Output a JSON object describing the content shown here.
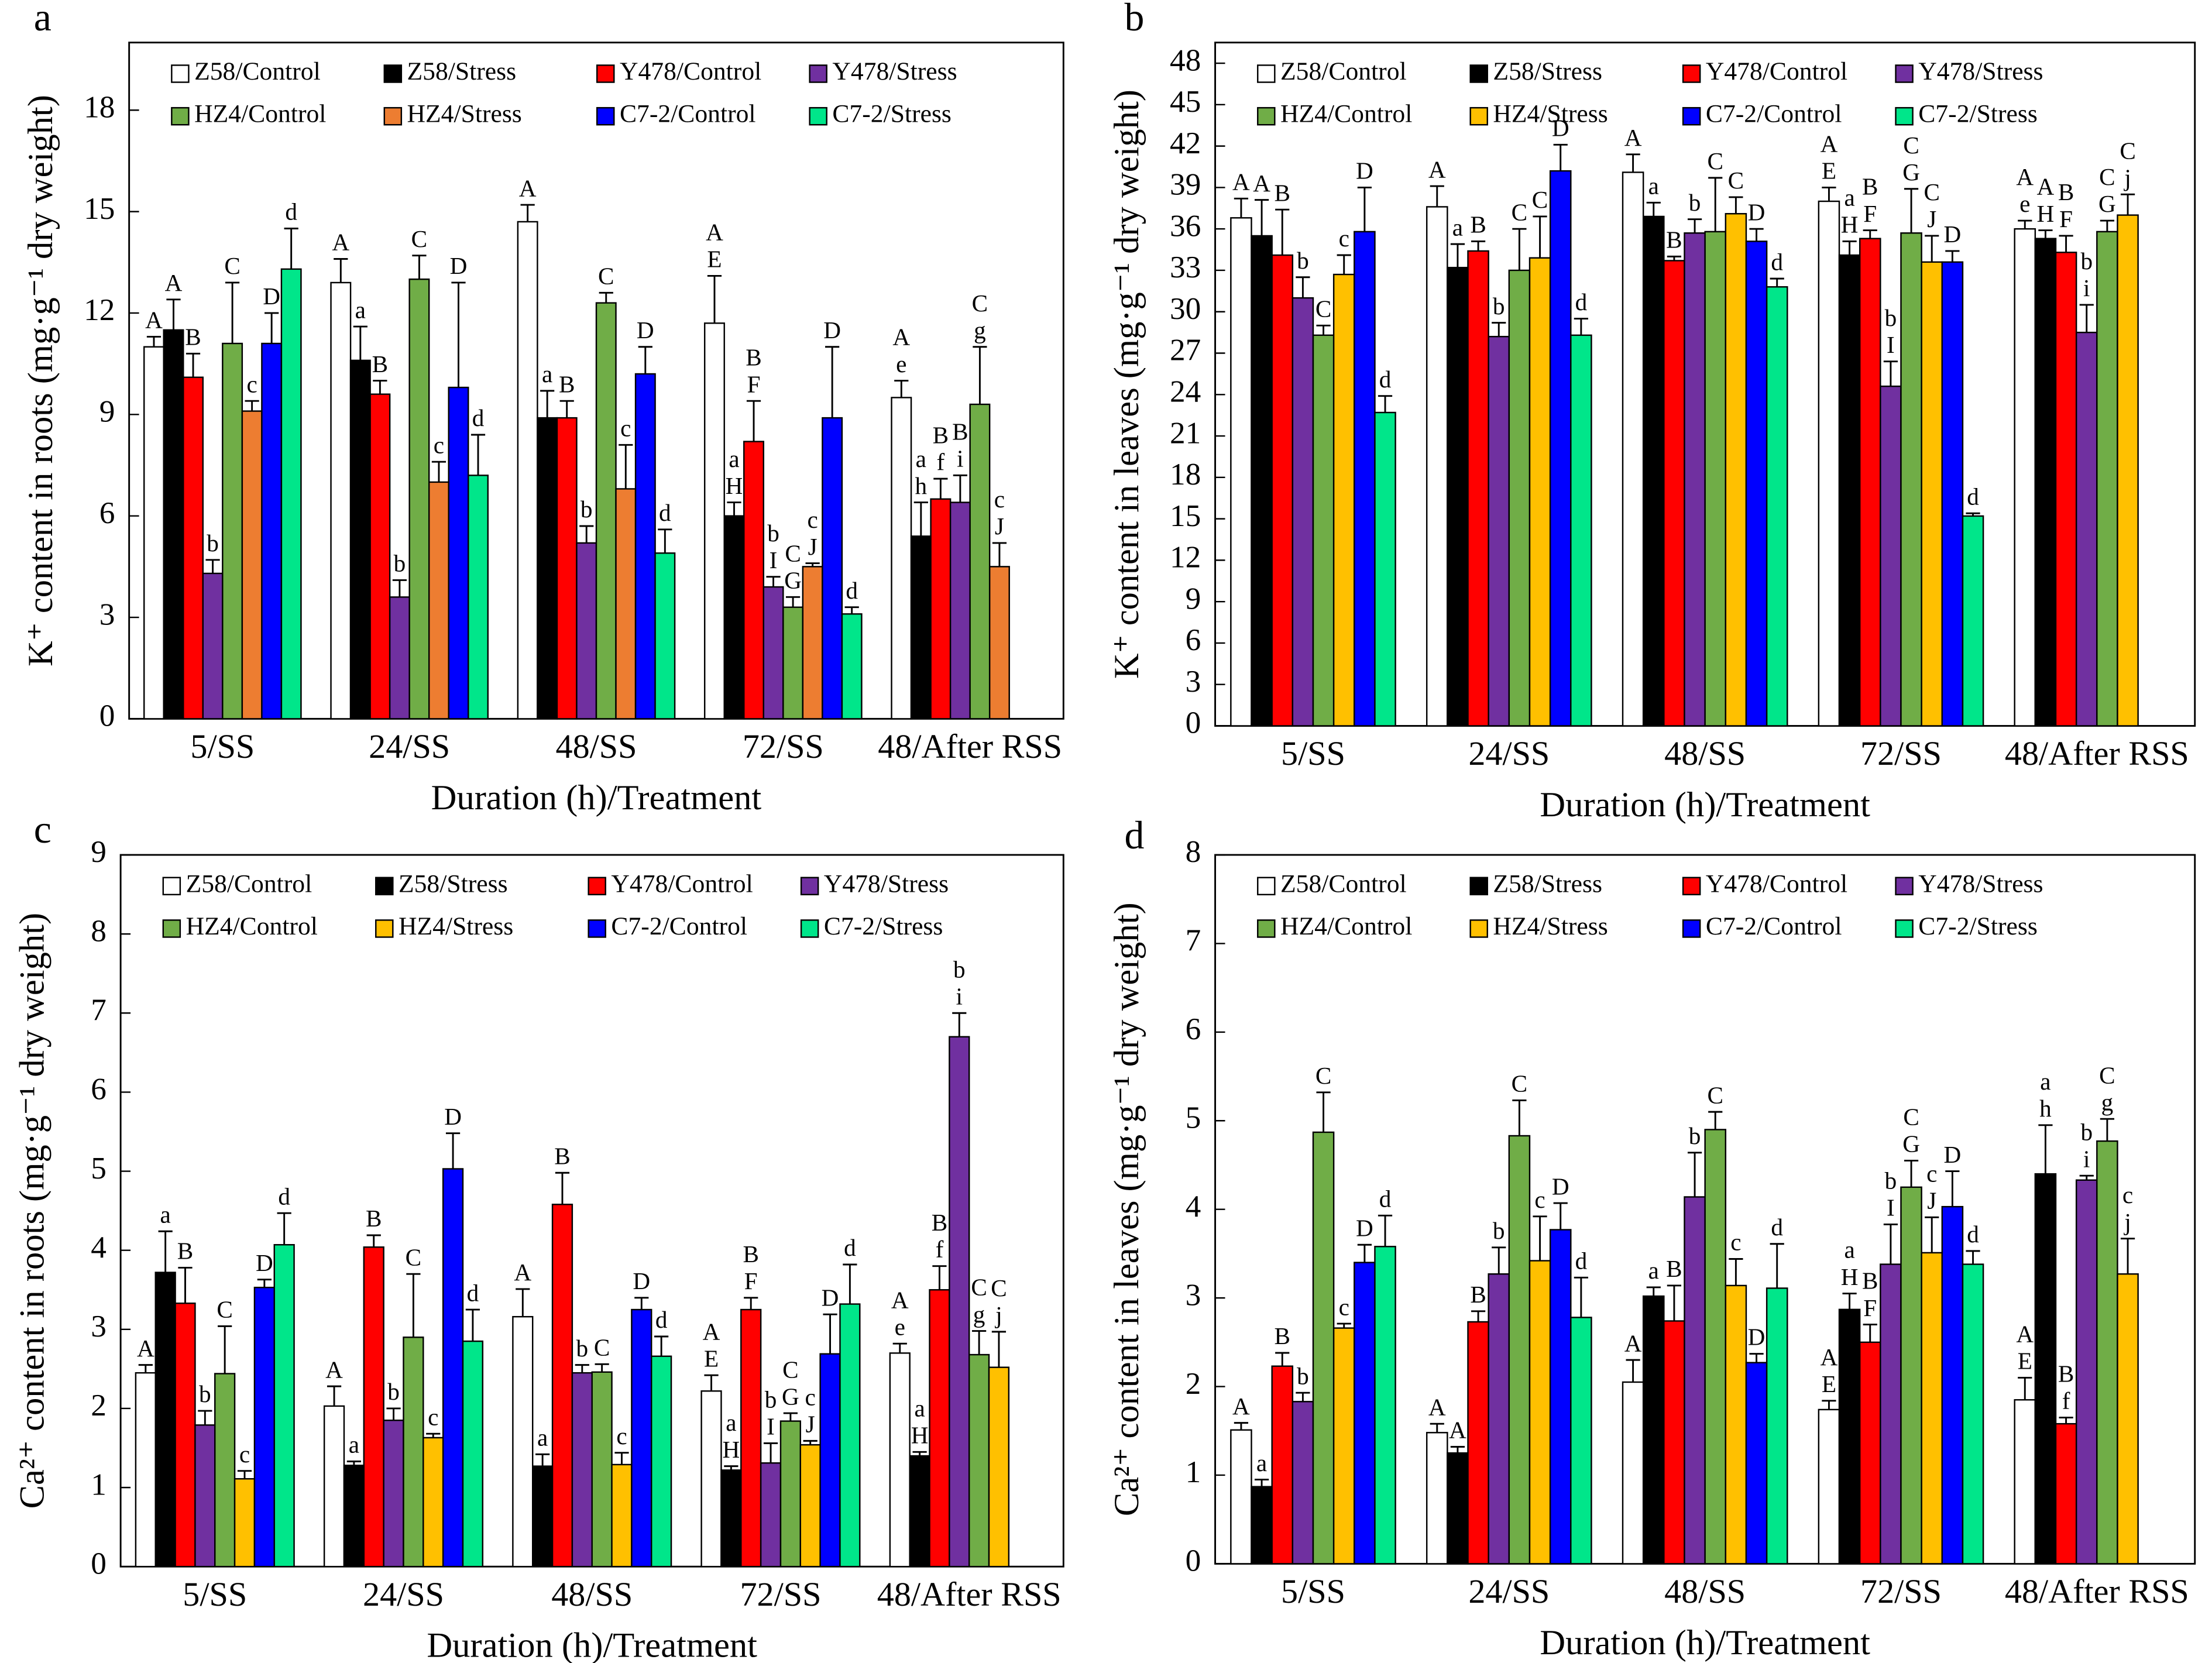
{
  "chart_data": [
    {
      "type": "bar",
      "panel": "a",
      "ylabel": "K⁺ content in roots (mg·g⁻¹ dry weight)",
      "xlabel": "Duration (h)/Treatment",
      "categories": [
        "5/SS",
        "24/SS",
        "48/SS",
        "72/SS",
        "48/After RSS"
      ],
      "ylim": [
        0,
        20
      ],
      "yticks": [
        0,
        3,
        6,
        9,
        12,
        15,
        18
      ],
      "series": [
        {
          "name": "Z58/Control",
          "color": "#ffffff",
          "values": [
            11.0,
            12.9,
            14.7,
            11.7,
            9.5
          ],
          "errors": [
            0.3,
            0.7,
            0.5,
            1.4,
            0.5
          ],
          "letters": [
            "A",
            "A",
            "A",
            [
              "A",
              "E"
            ],
            [
              "A",
              "e"
            ]
          ]
        },
        {
          "name": "Z58/Stress",
          "color": "#000000",
          "values": [
            11.5,
            10.6,
            8.9,
            6.0,
            5.4
          ],
          "errors": [
            0.9,
            1.0,
            0.8,
            0.4,
            1.0
          ],
          "letters": [
            "A",
            "a",
            "a",
            [
              "a",
              "H"
            ],
            [
              "a",
              "h"
            ]
          ]
        },
        {
          "name": "Y478/Control",
          "color": "#ff0000",
          "values": [
            10.1,
            9.6,
            8.9,
            8.2,
            6.5
          ],
          "errors": [
            0.7,
            0.4,
            0.5,
            1.2,
            0.6
          ],
          "letters": [
            "B",
            "B",
            "B",
            [
              "B",
              "F"
            ],
            [
              "B",
              "f"
            ]
          ]
        },
        {
          "name": "Y478/Stress",
          "color": "#7030a0",
          "values": [
            4.3,
            3.6,
            5.2,
            3.9,
            6.4
          ],
          "errors": [
            0.4,
            0.5,
            0.5,
            0.3,
            0.8
          ],
          "letters": [
            "b",
            "b",
            "b",
            [
              "b",
              "I"
            ],
            [
              "B",
              "i"
            ]
          ]
        },
        {
          "name": "HZ4/Control",
          "color": "#70ad47",
          "values": [
            11.1,
            13.0,
            12.3,
            3.3,
            9.3
          ],
          "errors": [
            1.8,
            0.7,
            0.3,
            0.3,
            1.7
          ],
          "letters": [
            "C",
            "C",
            "C",
            [
              "C",
              "G"
            ],
            [
              "C",
              "g"
            ]
          ]
        },
        {
          "name": "HZ4/Stress",
          "color": "#ed7d31",
          "values": [
            9.1,
            7.0,
            6.8,
            4.5,
            4.5
          ],
          "errors": [
            0.3,
            0.6,
            1.3,
            0.1,
            0.7
          ],
          "letters": [
            "c",
            "c",
            "c",
            [
              "c",
              "J"
            ],
            [
              "c",
              "J"
            ]
          ]
        },
        {
          "name": "C7-2/Control",
          "color": "#0000ff",
          "values": [
            11.1,
            9.8,
            10.2,
            8.9,
            null
          ],
          "errors": [
            0.9,
            3.1,
            0.8,
            2.1,
            null
          ],
          "letters": [
            "D",
            "D",
            "D",
            "D",
            null
          ]
        },
        {
          "name": "C7-2/Stress",
          "color": "#00e68a",
          "values": [
            13.3,
            7.2,
            4.9,
            3.1,
            null
          ],
          "errors": [
            1.2,
            1.2,
            0.7,
            0.2,
            null
          ],
          "letters": [
            "d",
            "d",
            "d",
            "d",
            null
          ]
        }
      ]
    },
    {
      "type": "bar",
      "panel": "b",
      "ylabel": "K⁺ content in leaves (mg·g⁻¹ dry weight)",
      "xlabel": "Duration (h)/Treatment",
      "categories": [
        "5/SS",
        "24/SS",
        "48/SS",
        "72/SS",
        "48/After RSS"
      ],
      "ylim": [
        0,
        49.5
      ],
      "yticks": [
        0,
        3,
        6,
        9,
        12,
        15,
        18,
        21,
        24,
        27,
        30,
        33,
        36,
        39,
        42,
        45,
        48
      ],
      "series": [
        {
          "name": "Z58/Control",
          "color": "#ffffff",
          "values": [
            36.8,
            37.6,
            40.1,
            38.0,
            36.0
          ],
          "errors": [
            1.4,
            1.5,
            1.3,
            1.0,
            0.6
          ],
          "letters": [
            "A",
            "A",
            "A",
            [
              "A",
              "E"
            ],
            [
              "A",
              "e"
            ]
          ]
        },
        {
          "name": "Z58/Stress",
          "color": "#000000",
          "values": [
            35.5,
            33.2,
            36.9,
            34.1,
            35.3
          ],
          "errors": [
            2.6,
            1.7,
            1.0,
            1.0,
            0.6
          ],
          "letters": [
            "A",
            "a",
            "a",
            [
              "a",
              "H"
            ],
            [
              "A",
              "H"
            ]
          ]
        },
        {
          "name": "Y478/Control",
          "color": "#ff0000",
          "values": [
            34.1,
            34.4,
            33.7,
            35.3,
            34.3
          ],
          "errors": [
            3.3,
            0.7,
            0.3,
            0.6,
            1.2
          ],
          "letters": [
            "B",
            "B",
            "B",
            [
              "B",
              "F"
            ],
            [
              "B",
              "F"
            ]
          ]
        },
        {
          "name": "Y478/Stress",
          "color": "#7030a0",
          "values": [
            31.0,
            28.2,
            35.7,
            24.6,
            28.5
          ],
          "errors": [
            1.5,
            1.0,
            1.0,
            1.8,
            2.0
          ],
          "letters": [
            "b",
            "b",
            "b",
            [
              "b",
              "I"
            ],
            [
              "b",
              "i"
            ]
          ]
        },
        {
          "name": "HZ4/Control",
          "color": "#70ad47",
          "values": [
            28.3,
            33.0,
            35.8,
            35.7,
            35.8
          ],
          "errors": [
            0.7,
            3.0,
            3.9,
            3.2,
            0.8
          ],
          "letters": [
            "C",
            "C",
            "C",
            [
              "C",
              "G"
            ],
            [
              "C",
              "G"
            ]
          ]
        },
        {
          "name": "HZ4/Stress",
          "color": "#ffc000",
          "values": [
            32.7,
            33.9,
            37.1,
            33.6,
            37.0
          ],
          "errors": [
            1.4,
            3.0,
            1.2,
            1.9,
            1.5
          ],
          "letters": [
            "c",
            "C",
            "C",
            [
              "C",
              "J"
            ],
            [
              "C",
              "j"
            ]
          ]
        },
        {
          "name": "C7-2/Control",
          "color": "#0000ff",
          "values": [
            35.8,
            40.2,
            35.1,
            33.6,
            null
          ],
          "errors": [
            3.2,
            1.9,
            0.9,
            0.8,
            null
          ],
          "letters": [
            "D",
            "D",
            "D",
            "D",
            null
          ]
        },
        {
          "name": "C7-2/Stress",
          "color": "#00e68a",
          "values": [
            22.7,
            28.3,
            31.8,
            15.2,
            null
          ],
          "errors": [
            1.2,
            1.2,
            0.6,
            0.2,
            null
          ],
          "letters": [
            "d",
            "d",
            "d",
            "d",
            null
          ]
        }
      ]
    },
    {
      "type": "bar",
      "panel": "c",
      "ylabel": "Ca²⁺ content in roots (mg·g⁻¹ dry weight)",
      "xlabel": "Duration (h)/Treatment",
      "categories": [
        "5/SS",
        "24/SS",
        "48/SS",
        "72/SS",
        "48/After RSS"
      ],
      "ylim": [
        0,
        9
      ],
      "yticks": [
        0,
        1,
        2,
        3,
        4,
        5,
        6,
        7,
        8,
        9
      ],
      "series": [
        {
          "name": "Z58/Control",
          "color": "#ffffff",
          "values": [
            2.45,
            2.03,
            3.16,
            2.22,
            2.7
          ],
          "errors": [
            0.1,
            0.25,
            0.35,
            0.2,
            0.12
          ],
          "letters": [
            "A",
            "A",
            "A",
            [
              "A",
              "E"
            ],
            [
              "A",
              "e"
            ]
          ]
        },
        {
          "name": "Z58/Stress",
          "color": "#000000",
          "values": [
            3.72,
            1.28,
            1.27,
            1.22,
            1.4
          ],
          "errors": [
            0.52,
            0.05,
            0.15,
            0.05,
            0.05
          ],
          "letters": [
            "a",
            "a",
            "a",
            [
              "a",
              "H"
            ],
            [
              "a",
              "H"
            ]
          ]
        },
        {
          "name": "Y478/Control",
          "color": "#ff0000",
          "values": [
            3.33,
            4.04,
            4.58,
            3.25,
            3.5
          ],
          "errors": [
            0.45,
            0.15,
            0.4,
            0.15,
            0.3
          ],
          "letters": [
            "B",
            "B",
            "B",
            [
              "B",
              "F"
            ],
            [
              "B",
              "f"
            ]
          ]
        },
        {
          "name": "Y478/Stress",
          "color": "#7030a0",
          "values": [
            1.79,
            1.85,
            2.45,
            1.31,
            6.7
          ],
          "errors": [
            0.18,
            0.15,
            0.1,
            0.25,
            0.3
          ],
          "letters": [
            "b",
            "b",
            "b",
            [
              "b",
              "I"
            ],
            [
              "b",
              "i"
            ]
          ]
        },
        {
          "name": "HZ4/Control",
          "color": "#70ad47",
          "values": [
            2.44,
            2.9,
            2.46,
            1.84,
            2.68
          ],
          "errors": [
            0.6,
            0.8,
            0.1,
            0.1,
            0.3
          ],
          "letters": [
            "C",
            "C",
            "C",
            [
              "C",
              "G"
            ],
            [
              "C",
              "g"
            ]
          ]
        },
        {
          "name": "HZ4/Stress",
          "color": "#ffc000",
          "values": [
            1.11,
            1.63,
            1.29,
            1.54,
            2.52
          ],
          "errors": [
            0.1,
            0.05,
            0.15,
            0.05,
            0.45
          ],
          "letters": [
            "c",
            "c",
            "c",
            [
              "c",
              "J"
            ],
            [
              "C",
              "j"
            ]
          ]
        },
        {
          "name": "C7-2/Control",
          "color": "#0000ff",
          "values": [
            3.53,
            5.03,
            3.25,
            2.69,
            null
          ],
          "errors": [
            0.1,
            0.45,
            0.15,
            0.5,
            null
          ],
          "letters": [
            "D",
            "D",
            "D",
            "D",
            null
          ]
        },
        {
          "name": "C7-2/Stress",
          "color": "#00e68a",
          "values": [
            4.07,
            2.85,
            2.66,
            3.32,
            null
          ],
          "errors": [
            0.4,
            0.4,
            0.25,
            0.5,
            null
          ],
          "letters": [
            "d",
            "d",
            "d",
            "d",
            null
          ]
        }
      ]
    },
    {
      "type": "bar",
      "panel": "d",
      "ylabel": "Ca²⁺ content in leaves (mg·g⁻¹ dry weight)",
      "xlabel": "Duration (h)/Treatment",
      "categories": [
        "5/SS",
        "24/SS",
        "48/SS",
        "72/SS",
        "48/After RSS"
      ],
      "ylim": [
        0,
        8
      ],
      "yticks": [
        0,
        1,
        2,
        3,
        4,
        5,
        6,
        7,
        8
      ],
      "series": [
        {
          "name": "Z58/Control",
          "color": "#ffffff",
          "values": [
            1.51,
            1.48,
            2.05,
            1.74,
            1.85
          ],
          "errors": [
            0.08,
            0.1,
            0.25,
            0.1,
            0.25
          ],
          "letters": [
            "A",
            "A",
            "A",
            [
              "A",
              "E"
            ],
            [
              "A",
              "E"
            ]
          ]
        },
        {
          "name": "Z58/Stress",
          "color": "#000000",
          "values": [
            0.87,
            1.25,
            3.02,
            2.87,
            4.4
          ],
          "errors": [
            0.08,
            0.07,
            0.1,
            0.18,
            0.55
          ],
          "letters": [
            "a",
            "A",
            "a",
            [
              "a",
              "H"
            ],
            [
              "a",
              "h"
            ]
          ]
        },
        {
          "name": "Y478/Control",
          "color": "#ff0000",
          "values": [
            2.23,
            2.73,
            2.74,
            2.5,
            1.58
          ],
          "errors": [
            0.15,
            0.12,
            0.4,
            0.2,
            0.07
          ],
          "letters": [
            "B",
            "B",
            "B",
            [
              "B",
              "F"
            ],
            [
              "B",
              "f"
            ]
          ]
        },
        {
          "name": "Y478/Stress",
          "color": "#7030a0",
          "values": [
            1.83,
            3.27,
            4.14,
            3.38,
            4.33
          ],
          "errors": [
            0.1,
            0.3,
            0.5,
            0.45,
            0.05
          ],
          "letters": [
            "b",
            "b",
            "b",
            [
              "b",
              "I"
            ],
            [
              "b",
              "i"
            ]
          ]
        },
        {
          "name": "HZ4/Control",
          "color": "#70ad47",
          "values": [
            4.87,
            4.83,
            4.9,
            4.25,
            4.77
          ],
          "errors": [
            0.45,
            0.4,
            0.2,
            0.3,
            0.25
          ],
          "letters": [
            "C",
            "C",
            "C",
            [
              "C",
              "G"
            ],
            [
              "C",
              "g"
            ]
          ]
        },
        {
          "name": "HZ4/Stress",
          "color": "#ffc000",
          "values": [
            2.66,
            3.42,
            3.14,
            3.51,
            3.27
          ],
          "errors": [
            0.05,
            0.5,
            0.3,
            0.4,
            0.4
          ],
          "letters": [
            "c",
            "c",
            "c",
            [
              "c",
              "J"
            ],
            [
              "c",
              "j"
            ]
          ]
        },
        {
          "name": "C7-2/Control",
          "color": "#0000ff",
          "values": [
            3.4,
            3.77,
            2.27,
            4.03,
            null
          ],
          "errors": [
            0.2,
            0.3,
            0.1,
            0.4,
            null
          ],
          "letters": [
            "D",
            "D",
            "D",
            "D",
            null
          ]
        },
        {
          "name": "C7-2/Stress",
          "color": "#00e68a",
          "values": [
            3.58,
            2.78,
            3.11,
            3.38,
            null
          ],
          "errors": [
            0.35,
            0.45,
            0.5,
            0.15,
            null
          ],
          "letters": [
            "d",
            "d",
            "d",
            "d",
            null
          ]
        }
      ]
    }
  ]
}
